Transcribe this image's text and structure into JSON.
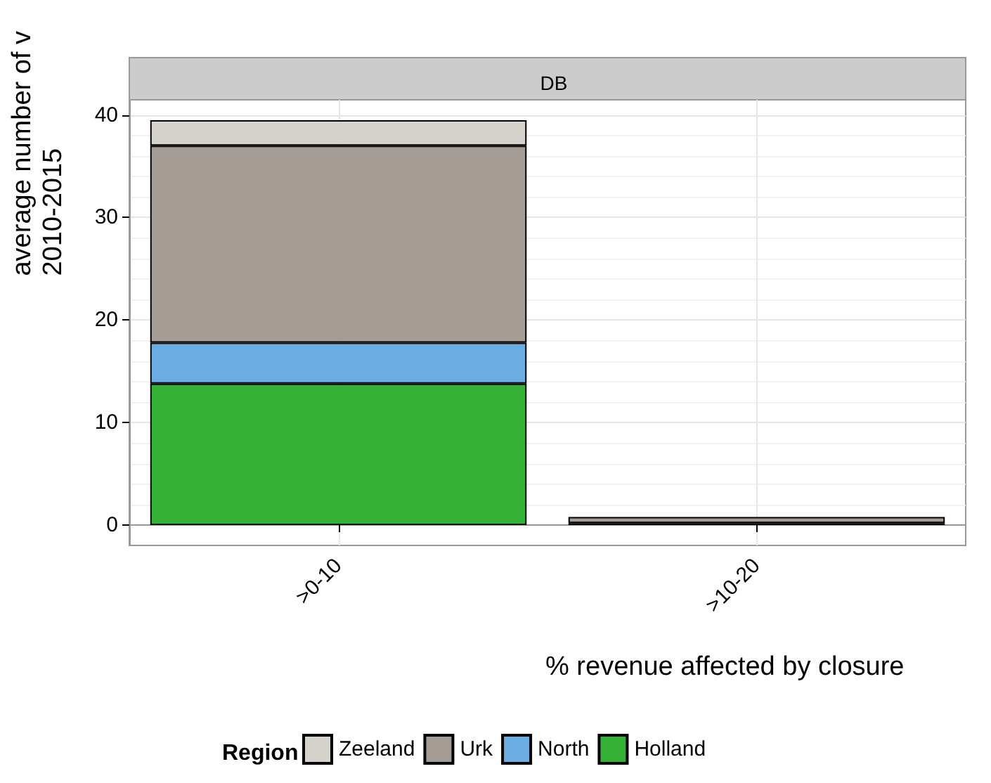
{
  "chart_data": {
    "type": "bar",
    "subtitle": "DB",
    "xlabel": "% revenue affected by closure",
    "ylabel": "average number of v\n2010-2015",
    "legend_title": "Region",
    "categories": [
      ">0-10",
      ">10-20"
    ],
    "stacked": true,
    "series": [
      {
        "name": "Holland",
        "color": "#35b235",
        "values": [
          13.8,
          0.2
        ]
      },
      {
        "name": "North",
        "color": "#6aaee3",
        "values": [
          4.0,
          null
        ]
      },
      {
        "name": "Urk",
        "color": "#a59c96",
        "values": [
          19.2,
          0.6
        ]
      },
      {
        "name": "Zeeland",
        "color": "#d6d3cc",
        "values": [
          2.5,
          null
        ]
      }
    ],
    "ylim": [
      -1.98,
      41.48
    ],
    "yticks": [
      0,
      10,
      20,
      30,
      40
    ],
    "grid": true,
    "legend": "bottom"
  }
}
